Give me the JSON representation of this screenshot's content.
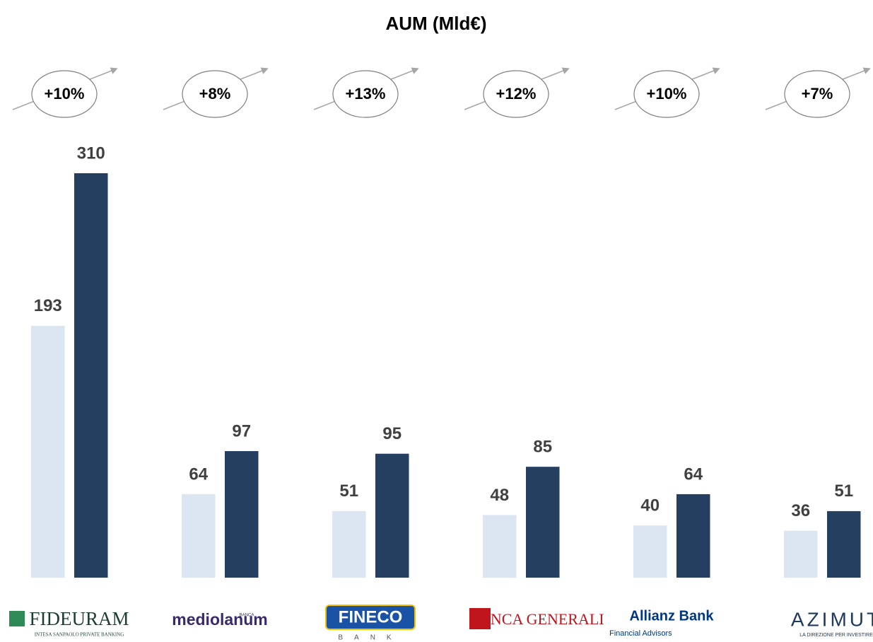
{
  "chart_data": {
    "type": "bar",
    "title": "AUM (Mld€)",
    "categories": [
      "FIDEURAM",
      "mediolanum",
      "FINECO",
      "BANCA GENERALI",
      "Allianz Bank",
      "AZIMUT"
    ],
    "category_sublabels": [
      "INTESA SANPAOLO PRIVATE BANKING",
      "BANCA",
      "BANK",
      "",
      "Financial Advisors",
      "LA DIREZIONE PER INVESTIRE"
    ],
    "series": [
      {
        "color": "#dce6f2",
        "values": [
          193,
          64,
          51,
          48,
          40,
          36
        ]
      },
      {
        "color": "#243f60",
        "values": [
          310,
          97,
          95,
          85,
          64,
          51
        ]
      }
    ],
    "annotations": [
      "+10%",
      "+8%",
      "+13%",
      "+12%",
      "+10%",
      "+7%"
    ]
  }
}
